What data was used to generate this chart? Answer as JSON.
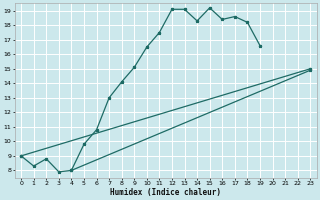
{
  "xlabel": "Humidex (Indice chaleur)",
  "bg_color": "#cce8ec",
  "grid_color": "#ffffff",
  "line_color": "#1e6b65",
  "xlim": [
    -0.5,
    23.5
  ],
  "ylim": [
    7.5,
    19.5
  ],
  "xticks": [
    0,
    1,
    2,
    3,
    4,
    5,
    6,
    7,
    8,
    9,
    10,
    11,
    12,
    13,
    14,
    15,
    16,
    17,
    18,
    19,
    20,
    21,
    22,
    23
  ],
  "yticks": [
    8,
    9,
    10,
    11,
    12,
    13,
    14,
    15,
    16,
    17,
    18,
    19
  ],
  "line1_x": [
    0,
    1,
    2,
    3,
    4,
    5,
    6,
    7,
    8,
    9,
    10,
    11,
    12,
    13,
    14,
    15,
    16,
    17,
    18,
    19
  ],
  "line1_y": [
    9.0,
    8.3,
    8.8,
    7.9,
    8.0,
    9.8,
    10.8,
    13.0,
    14.1,
    15.1,
    16.5,
    17.5,
    19.1,
    19.1,
    18.3,
    19.2,
    18.4,
    18.6,
    18.2,
    16.6
  ],
  "line2_x": [
    0,
    23
  ],
  "line2_y": [
    9.0,
    15.0
  ],
  "line3_x": [
    4,
    23
  ],
  "line3_y": [
    8.0,
    14.9
  ]
}
